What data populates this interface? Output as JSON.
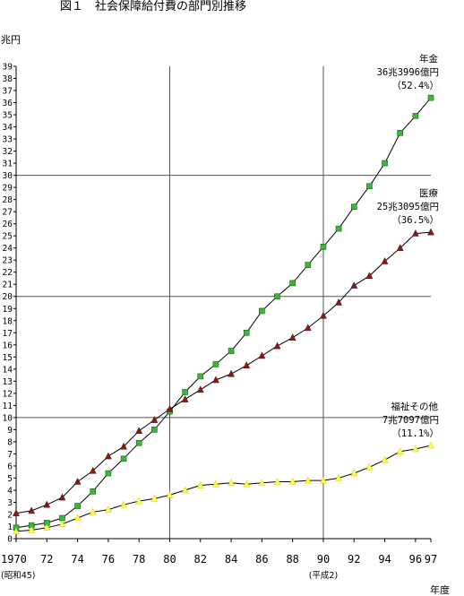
{
  "chart_data": {
    "type": "line",
    "title": "図１　社会保障給付費の部門別推移",
    "ylabel": "兆円",
    "xlabel": "年度",
    "ylim": [
      0,
      39
    ],
    "yticks": [
      0,
      1,
      2,
      3,
      4,
      5,
      6,
      7,
      8,
      9,
      10,
      11,
      12,
      13,
      14,
      15,
      16,
      17,
      18,
      19,
      20,
      21,
      22,
      23,
      24,
      25,
      26,
      27,
      28,
      29,
      30,
      31,
      32,
      33,
      34,
      35,
      36,
      37,
      38,
      39
    ],
    "xlim": [
      1970,
      1997
    ],
    "xticks": [
      {
        "x": 1970,
        "label": "1970"
      },
      {
        "x": 1972,
        "label": "72"
      },
      {
        "x": 1974,
        "label": "74"
      },
      {
        "x": 1976,
        "label": "76"
      },
      {
        "x": 1978,
        "label": "78"
      },
      {
        "x": 1980,
        "label": "80"
      },
      {
        "x": 1982,
        "label": "82"
      },
      {
        "x": 1984,
        "label": "84"
      },
      {
        "x": 1986,
        "label": "86"
      },
      {
        "x": 1988,
        "label": "88"
      },
      {
        "x": 1990,
        "label": "90"
      },
      {
        "x": 1992,
        "label": "92"
      },
      {
        "x": 1994,
        "label": "94"
      },
      {
        "x": 1996,
        "label": "96"
      },
      {
        "x": 1997,
        "label": "97"
      }
    ],
    "xsub": [
      {
        "x": 1970,
        "label": "(昭和45)"
      },
      {
        "x": 1990,
        "label": "(平成2)"
      }
    ],
    "grid": {
      "horizontal": [
        10,
        20,
        30
      ],
      "vertical": [
        1980,
        1990
      ]
    },
    "x": [
      1970,
      1971,
      1972,
      1973,
      1974,
      1975,
      1976,
      1977,
      1978,
      1979,
      1980,
      1981,
      1982,
      1983,
      1984,
      1985,
      1986,
      1987,
      1988,
      1989,
      1990,
      1991,
      1992,
      1993,
      1994,
      1995,
      1996,
      1997
    ],
    "series": [
      {
        "name": "年金",
        "marker": "square",
        "color": "#33bb33",
        "values": [
          0.9,
          1.1,
          1.3,
          1.7,
          2.7,
          3.9,
          5.4,
          6.6,
          7.9,
          9.0,
          10.5,
          12.1,
          13.4,
          14.4,
          15.5,
          17.0,
          18.8,
          20.0,
          21.1,
          22.6,
          24.1,
          25.6,
          27.4,
          29.1,
          31.0,
          33.5,
          34.9,
          36.4
        ]
      },
      {
        "name": "医療",
        "marker": "triangle",
        "color": "#8a1a1a",
        "values": [
          2.1,
          2.3,
          2.8,
          3.4,
          4.7,
          5.6,
          6.8,
          7.6,
          8.9,
          9.8,
          10.7,
          11.5,
          12.3,
          13.1,
          13.6,
          14.3,
          15.1,
          15.9,
          16.6,
          17.4,
          18.4,
          19.5,
          20.9,
          21.7,
          22.9,
          24.0,
          25.2,
          25.3
        ]
      },
      {
        "name": "福祉その他",
        "marker": "triangle",
        "color": "#ffff44",
        "values": [
          0.6,
          0.7,
          0.9,
          1.2,
          1.7,
          2.2,
          2.4,
          2.8,
          3.1,
          3.3,
          3.6,
          4.0,
          4.4,
          4.5,
          4.6,
          4.5,
          4.6,
          4.7,
          4.7,
          4.8,
          4.8,
          5.0,
          5.4,
          5.9,
          6.5,
          7.2,
          7.4,
          7.7
        ]
      }
    ],
    "annotations": [
      {
        "series": "年金",
        "lines": [
          "年金",
          "36兆3996億円",
          "（52.4%）"
        ]
      },
      {
        "series": "医療",
        "lines": [
          "医療",
          "25兆3095億円",
          "（36.5%）"
        ]
      },
      {
        "series": "福祉その他",
        "lines": [
          "福祉その他",
          "7兆7097億円",
          "（11.1%）"
        ]
      }
    ]
  }
}
